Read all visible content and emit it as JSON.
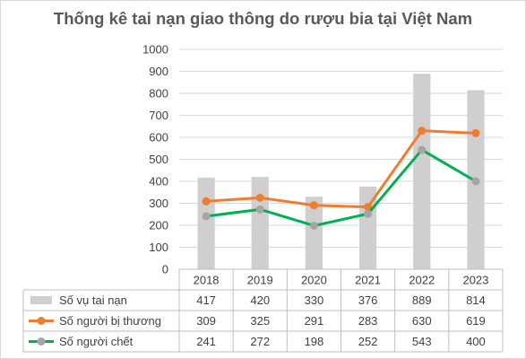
{
  "chart_data": {
    "type": "bar",
    "title": "Thống kê tai nạn giao thông do rượu bia tại Việt Nam",
    "categories": [
      "2018",
      "2019",
      "2020",
      "2021",
      "2022",
      "2023"
    ],
    "ylim": [
      0,
      1000
    ],
    "yticks": [
      0,
      100,
      200,
      300,
      400,
      500,
      600,
      700,
      800,
      900,
      1000
    ],
    "grid": true,
    "legend": "data-table",
    "series": [
      {
        "name": "Số vụ tai nạn",
        "type": "bar",
        "color": "#d0cece",
        "values": [
          417,
          420,
          330,
          376,
          889,
          814
        ]
      },
      {
        "name": "Số người bị thương",
        "type": "line",
        "color": "#ed7d31",
        "marker_color": "#ed7d31",
        "values": [
          309,
          325,
          291,
          283,
          630,
          619
        ]
      },
      {
        "name": "Số người chết",
        "type": "line",
        "color": "#00b050",
        "marker_color": "#a5a5a5",
        "values": [
          241,
          272,
          198,
          252,
          543,
          400
        ]
      }
    ]
  }
}
